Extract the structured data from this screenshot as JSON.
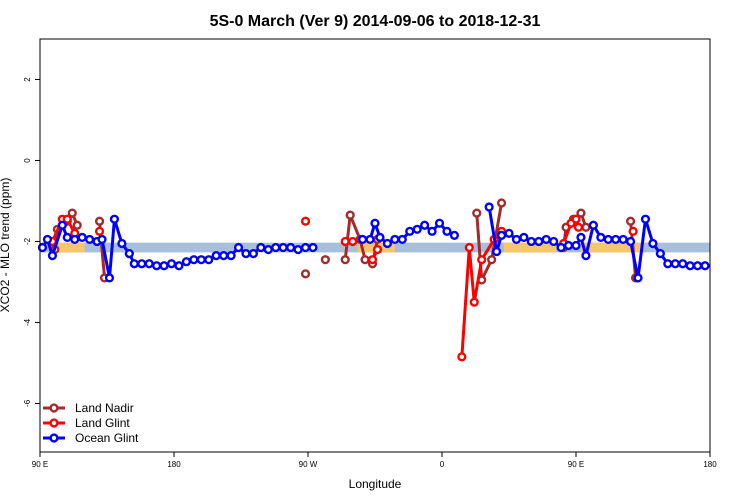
{
  "chart_data": {
    "type": "line",
    "title": "5S-0 March (Ver 9)   2014-09-06 to 2018-12-31",
    "xlabel": "Longitude",
    "ylabel": "XCO2 - MLO trend (ppm)",
    "xlim": [
      -90,
      180
    ],
    "ylim": [
      -7.2,
      3.0
    ],
    "x_ticks": [
      {
        "value": -90,
        "label": "90 E"
      },
      {
        "value": -36,
        "label": "180"
      },
      {
        "value": 18,
        "label": "90 W"
      },
      {
        "value": 72,
        "label": "0"
      },
      {
        "value": 126,
        "label": "90 E"
      },
      {
        "value": 180,
        "label": "180"
      }
    ],
    "y_ticks": [
      {
        "value": 2,
        "label": "2"
      },
      {
        "value": 0,
        "label": "0"
      },
      {
        "value": -2,
        "label": "-2"
      },
      {
        "value": -4,
        "label": "-4"
      },
      {
        "value": -6,
        "label": "-6"
      }
    ],
    "reference_band": {
      "y_low": -2.27,
      "y_high": -2.03,
      "color": "#a8bfdc"
    },
    "highlight_band_color": "#f7c56c",
    "highlight_ranges": [
      [
        -86,
        -72
      ],
      [
        38,
        53
      ],
      [
        97,
        118
      ],
      [
        128,
        152
      ]
    ],
    "legend_position": "bottom-left",
    "grid": false,
    "series": [
      {
        "name": "Land Nadir",
        "color": "#a52a2a",
        "segments": [
          [
            [
              -84,
              -2.2
            ],
            [
              -83,
              -1.7
            ],
            [
              -79,
              -1.5
            ],
            [
              -77,
              -1.3
            ],
            [
              -75,
              -1.6
            ]
          ],
          [
            [
              -66,
              -1.5
            ],
            [
              -64,
              -2.9
            ]
          ],
          [
            [
              17,
              -2.8
            ]
          ],
          [
            [
              25,
              -2.45
            ]
          ],
          [
            [
              33,
              -2.45
            ],
            [
              35,
              -1.35
            ],
            [
              39,
              -1.95
            ],
            [
              41,
              -2.45
            ],
            [
              44,
              -2.55
            ],
            [
              46,
              -1.95
            ]
          ],
          [
            [
              86,
              -1.3
            ],
            [
              88,
              -2.95
            ],
            [
              92,
              -2.45
            ],
            [
              96,
              -1.05
            ]
          ],
          [
            [
              121,
              -2.15
            ],
            [
              122,
              -1.65
            ],
            [
              125,
              -1.45
            ],
            [
              128,
              -1.3
            ],
            [
              130,
              -1.65
            ]
          ],
          [
            [
              148,
              -1.5
            ],
            [
              150,
              -2.9
            ]
          ]
        ]
      },
      {
        "name": "Land Glint",
        "color": "#ff0000",
        "segments": [
          [
            [
              -85,
              -2.0
            ],
            [
              -81,
              -1.45
            ],
            [
              -79,
              -1.45
            ],
            [
              -76,
              -1.8
            ]
          ],
          [
            [
              -66,
              -1.75
            ]
          ],
          [
            [
              17,
              -1.5
            ]
          ],
          [
            [
              33,
              -2.0
            ],
            [
              36,
              -2.0
            ]
          ],
          [
            [
              44,
              -2.45
            ],
            [
              46,
              -2.2
            ]
          ],
          [
            [
              80,
              -4.85
            ],
            [
              83,
              -2.15
            ],
            [
              85,
              -3.5
            ],
            [
              88,
              -2.45
            ],
            [
              93,
              -1.95
            ],
            [
              96,
              -1.75
            ]
          ],
          [
            [
              121,
              -2.05
            ],
            [
              124,
              -1.55
            ],
            [
              126,
              -1.45
            ],
            [
              127,
              -1.65
            ]
          ],
          [
            [
              149,
              -1.75
            ]
          ]
        ]
      },
      {
        "name": "Ocean Glint",
        "color": "#0000ff",
        "segments": [
          [
            [
              -89,
              -2.15
            ],
            [
              -87,
              -1.95
            ],
            [
              -85,
              -2.35
            ],
            [
              -81,
              -1.6
            ],
            [
              -79,
              -1.9
            ],
            [
              -76,
              -1.95
            ],
            [
              -73,
              -1.9
            ],
            [
              -70,
              -1.95
            ],
            [
              -67,
              -2.0
            ],
            [
              -65,
              -1.95
            ],
            [
              -62,
              -2.9
            ],
            [
              -60,
              -1.45
            ],
            [
              -57,
              -2.05
            ],
            [
              -54,
              -2.3
            ],
            [
              -52,
              -2.55
            ],
            [
              -49,
              -2.55
            ],
            [
              -46,
              -2.55
            ],
            [
              -43,
              -2.6
            ],
            [
              -40,
              -2.6
            ],
            [
              -37,
              -2.55
            ],
            [
              -34,
              -2.6
            ],
            [
              -31,
              -2.5
            ],
            [
              -28,
              -2.45
            ],
            [
              -25,
              -2.45
            ],
            [
              -22,
              -2.45
            ],
            [
              -19,
              -2.35
            ],
            [
              -16,
              -2.35
            ],
            [
              -13,
              -2.35
            ],
            [
              -10,
              -2.15
            ],
            [
              -7,
              -2.3
            ],
            [
              -4,
              -2.3
            ],
            [
              -1,
              -2.15
            ],
            [
              2,
              -2.2
            ],
            [
              5,
              -2.15
            ],
            [
              8,
              -2.15
            ],
            [
              11,
              -2.15
            ],
            [
              14,
              -2.2
            ],
            [
              17,
              -2.15
            ],
            [
              20,
              -2.15
            ]
          ],
          [
            [
              40,
              -1.95
            ],
            [
              43,
              -1.95
            ],
            [
              45,
              -1.55
            ],
            [
              47,
              -1.9
            ],
            [
              50,
              -2.05
            ],
            [
              53,
              -1.95
            ],
            [
              56,
              -1.95
            ],
            [
              59,
              -1.75
            ],
            [
              62,
              -1.7
            ],
            [
              65,
              -1.6
            ],
            [
              68,
              -1.75
            ],
            [
              71,
              -1.55
            ],
            [
              74,
              -1.75
            ],
            [
              77,
              -1.85
            ]
          ],
          [
            [
              91,
              -1.15
            ],
            [
              94,
              -2.25
            ],
            [
              96,
              -1.85
            ],
            [
              99,
              -1.8
            ],
            [
              102,
              -1.95
            ],
            [
              105,
              -1.9
            ],
            [
              108,
              -2.0
            ],
            [
              111,
              -2.0
            ],
            [
              114,
              -1.95
            ],
            [
              117,
              -2.0
            ],
            [
              120,
              -2.15
            ],
            [
              123,
              -2.1
            ],
            [
              126,
              -2.1
            ],
            [
              128,
              -1.9
            ],
            [
              130,
              -2.35
            ],
            [
              133,
              -1.6
            ],
            [
              136,
              -1.9
            ],
            [
              139,
              -1.95
            ],
            [
              142,
              -1.95
            ],
            [
              145,
              -1.95
            ],
            [
              148,
              -2.0
            ],
            [
              151,
              -2.9
            ],
            [
              154,
              -1.45
            ],
            [
              157,
              -2.05
            ],
            [
              160,
              -2.3
            ],
            [
              163,
              -2.55
            ],
            [
              166,
              -2.55
            ],
            [
              169,
              -2.55
            ],
            [
              172,
              -2.6
            ],
            [
              175,
              -2.6
            ],
            [
              178,
              -2.6
            ]
          ]
        ]
      }
    ]
  }
}
